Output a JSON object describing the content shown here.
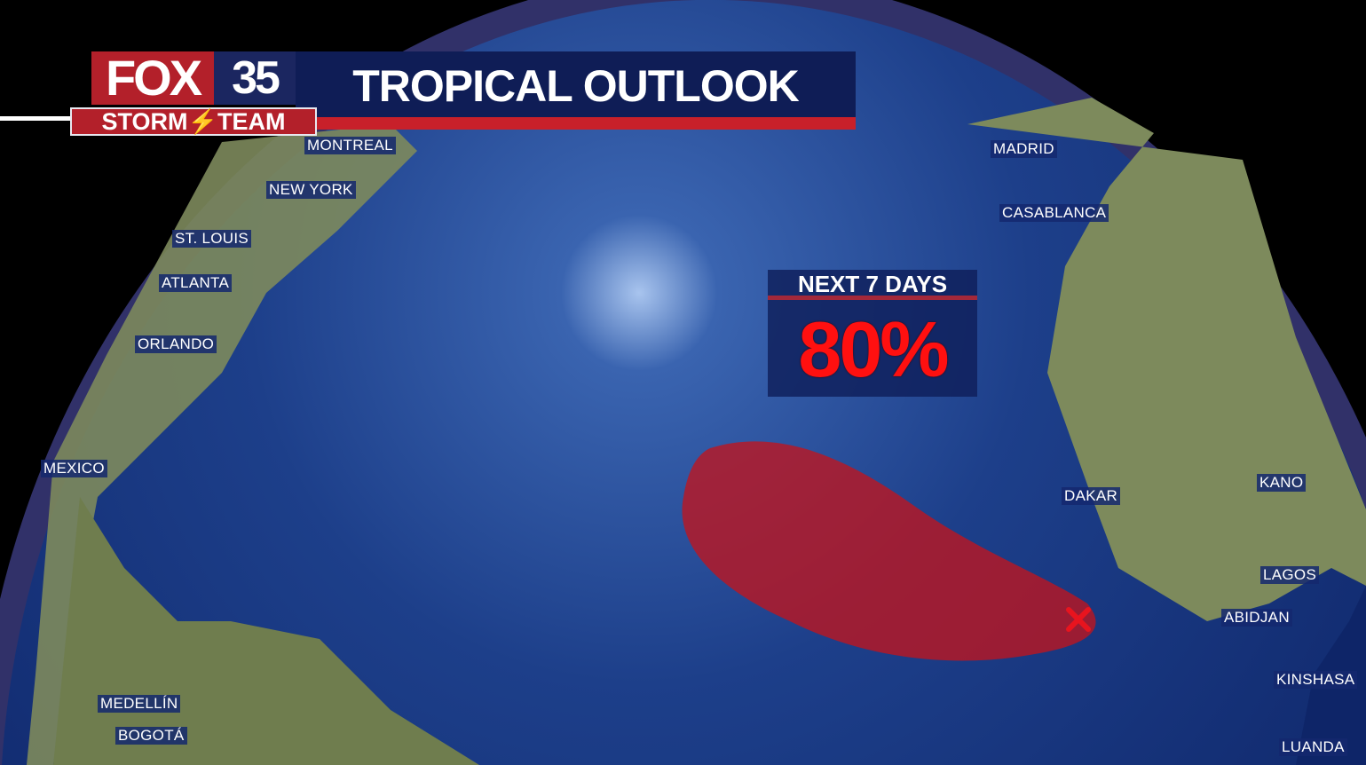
{
  "header": {
    "brand": "FOX",
    "channel": "35",
    "team": "STORM⚡TEAM",
    "title": "TROPICAL OUTLOOK"
  },
  "outlook": {
    "period_label": "NEXT 7 DAYS",
    "probability": "80%",
    "probability_value": 80,
    "area_color": "#c0141e",
    "marker_icon": "x-icon"
  },
  "cities": [
    "MONTREAL",
    "NEW YORK",
    "ST. LOUIS",
    "ATLANTA",
    "ORLANDO",
    "MEXICO",
    "MEDELLÍN",
    "BOGOTÁ",
    "MADRID",
    "CASABLANCA",
    "DAKAR",
    "KANO",
    "LAGOS",
    "ABIDJAN",
    "KINSHASA",
    "LUANDA"
  ]
}
